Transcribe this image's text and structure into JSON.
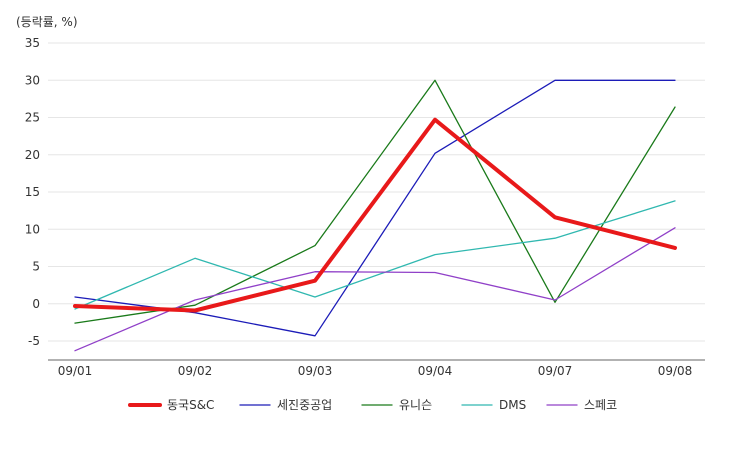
{
  "chart_data": {
    "type": "line",
    "unit_label": "(등락률, %)",
    "x": [
      "09/01",
      "09/02",
      "09/03",
      "09/04",
      "09/07",
      "09/08"
    ],
    "yticks": [
      35,
      30,
      25,
      20,
      15,
      10,
      5,
      0,
      -5
    ],
    "ylim": [
      -7.5,
      35
    ],
    "grid": true,
    "legend_position": "bottom",
    "series": [
      {
        "name": "동국S&C",
        "color": "#e8191a",
        "emphasis": true,
        "values": [
          -0.3,
          -0.9,
          3.1,
          24.7,
          11.6,
          7.5
        ]
      },
      {
        "name": "세진중공업",
        "color": "#1c1cb8",
        "values": [
          0.9,
          -1.2,
          -4.3,
          20.2,
          30.0,
          30.0
        ]
      },
      {
        "name": "유니슨",
        "color": "#1a7a1a",
        "values": [
          -2.6,
          -0.2,
          7.8,
          30.0,
          0.2,
          26.4
        ]
      },
      {
        "name": "DMS",
        "color": "#30b8b0",
        "values": [
          -0.7,
          6.1,
          0.9,
          6.6,
          8.8,
          13.8
        ]
      },
      {
        "name": "스페코",
        "color": "#9040c8",
        "values": [
          -6.3,
          0.5,
          4.3,
          4.2,
          0.5,
          10.2
        ]
      }
    ]
  }
}
